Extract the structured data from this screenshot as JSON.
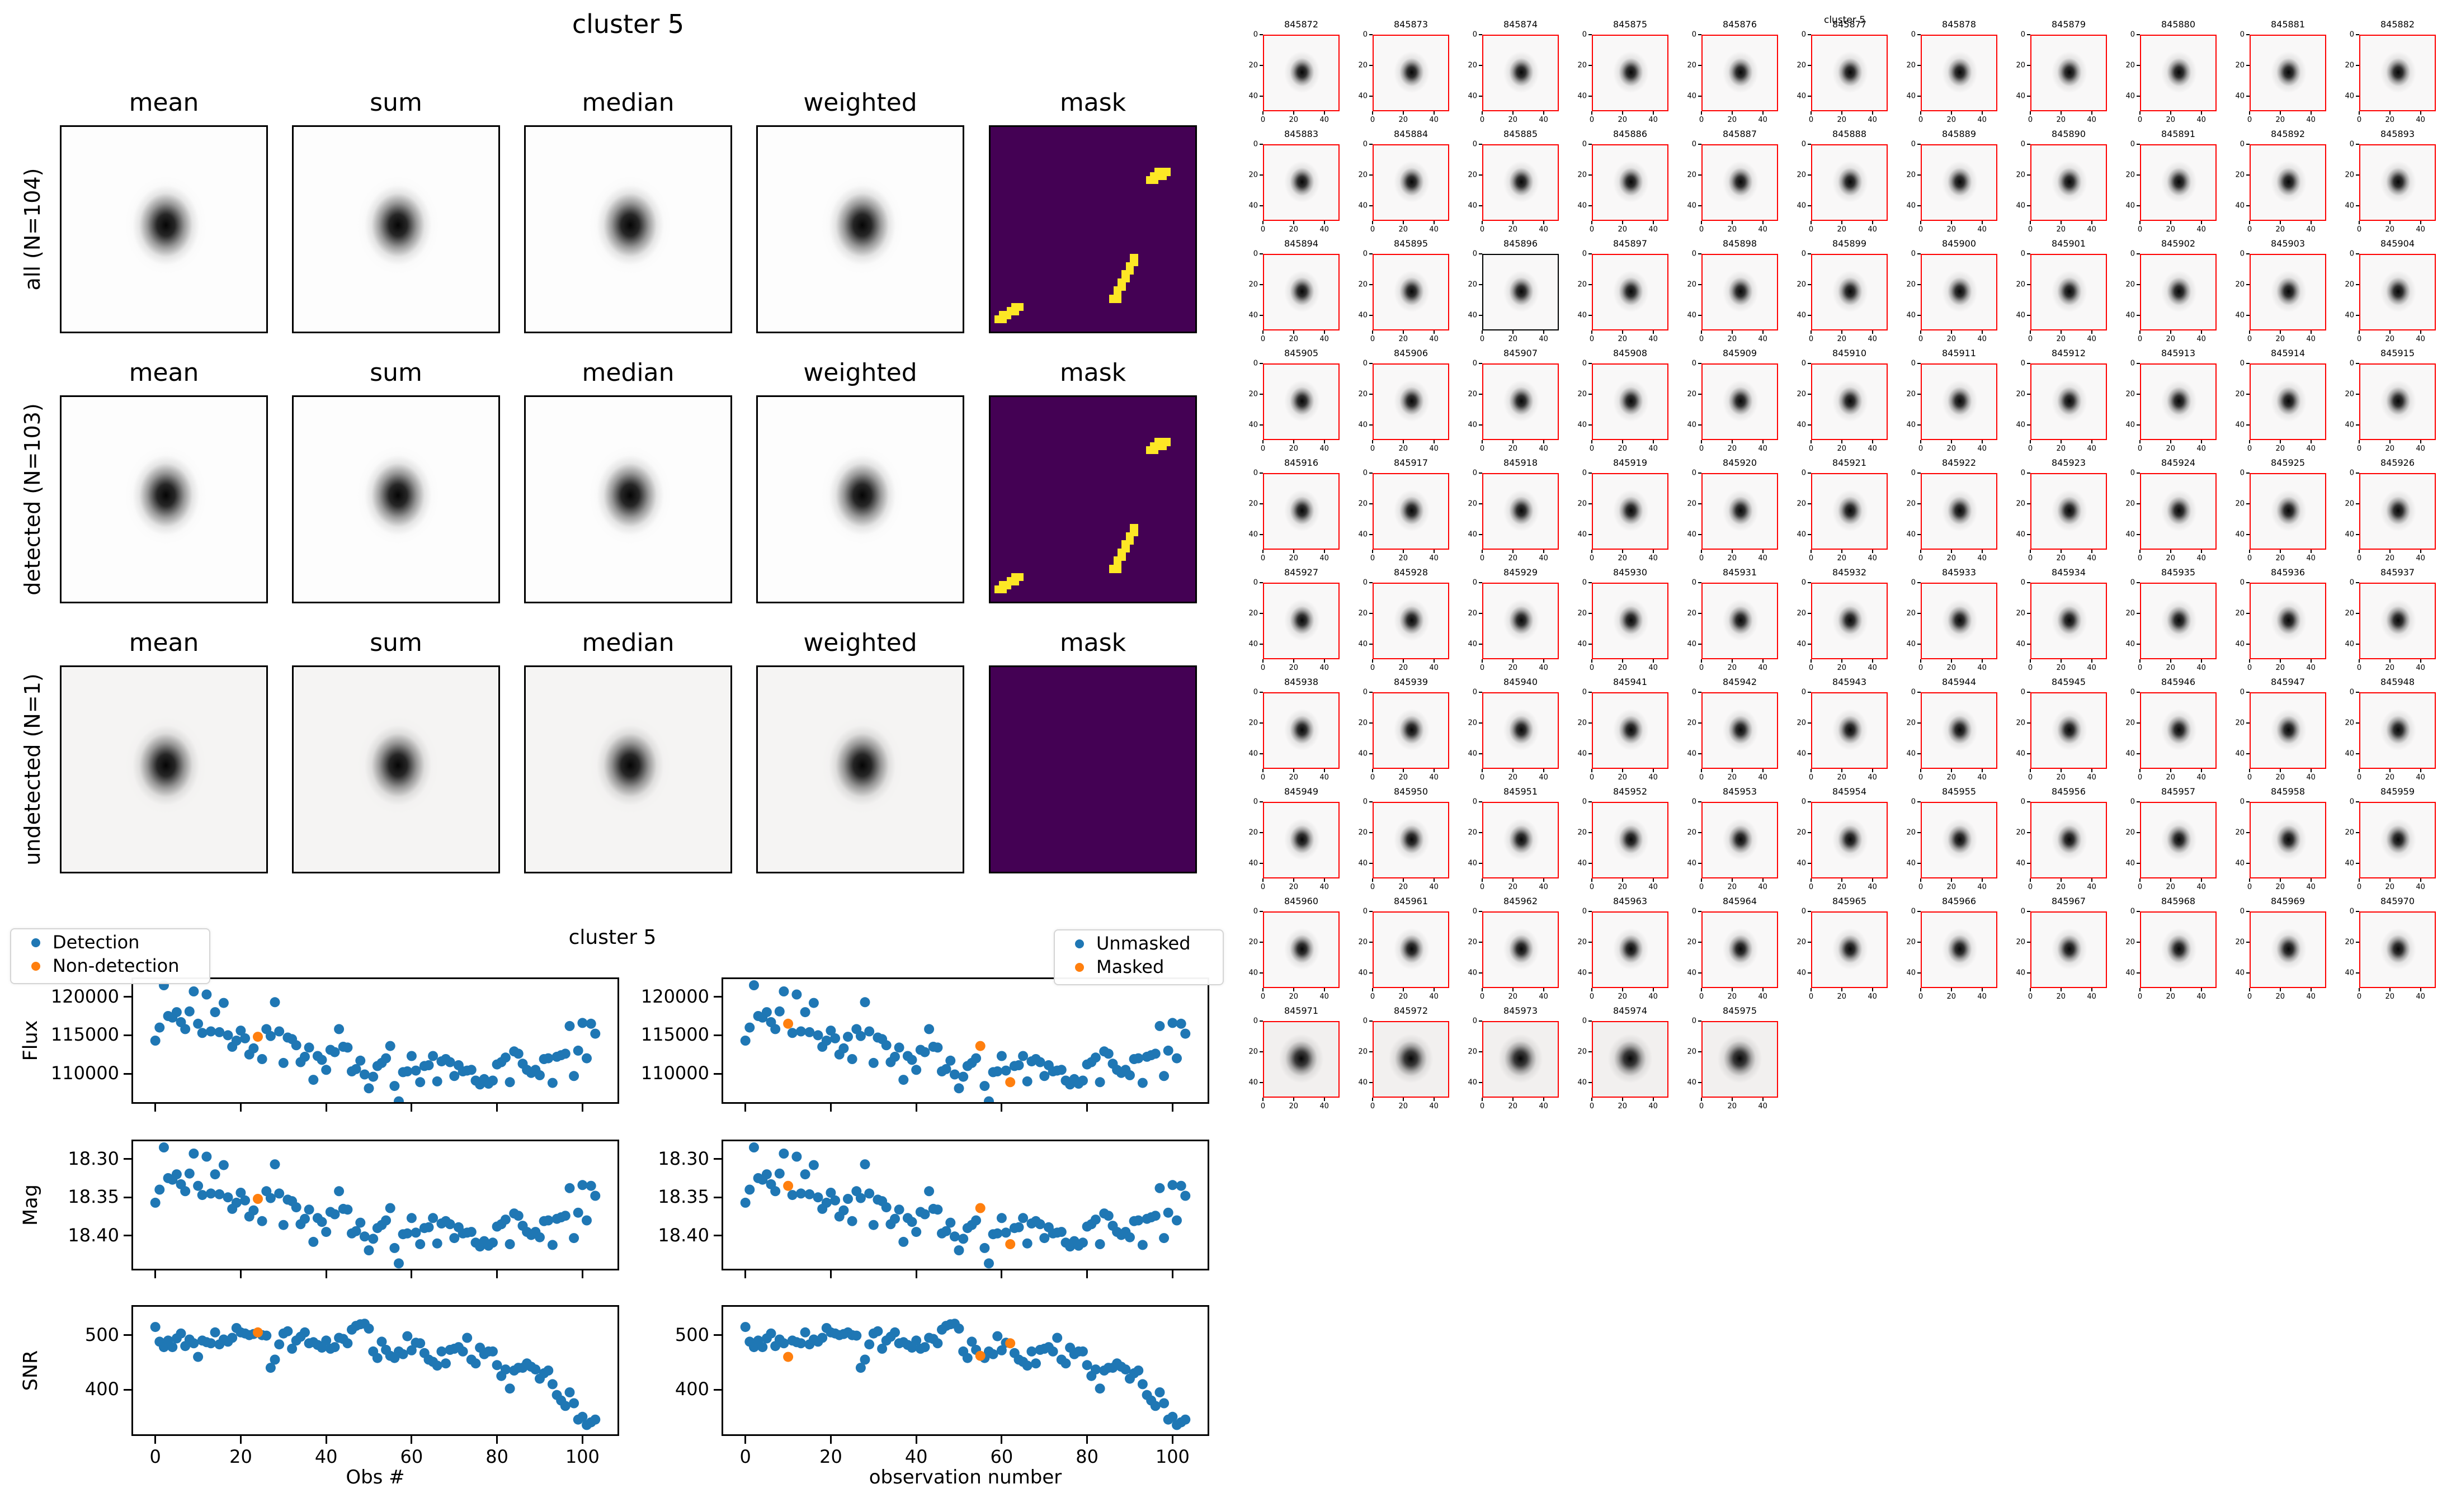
{
  "cutouts": {
    "title": "cluster 5",
    "column_headers": [
      "mean",
      "sum",
      "median",
      "weighted",
      "mask"
    ],
    "rows": [
      {
        "label": "all (N=104)",
        "mask": "full",
        "noisy": false
      },
      {
        "label": "detected (N=103)",
        "mask": "full",
        "noisy": false
      },
      {
        "label": "undetected (N=1)",
        "mask": "empty",
        "noisy": true
      }
    ],
    "mask_bg": "#440154",
    "mask_fg": "#fde725",
    "mask_grid_size": 50,
    "mask_cells": [
      [
        40,
        10
      ],
      [
        41,
        10
      ],
      [
        42,
        10
      ],
      [
        39,
        11
      ],
      [
        40,
        11
      ],
      [
        41,
        11
      ],
      [
        38,
        12
      ],
      [
        39,
        12
      ],
      [
        34,
        31
      ],
      [
        34,
        32
      ],
      [
        33,
        33
      ],
      [
        33,
        34
      ],
      [
        32,
        35
      ],
      [
        32,
        36
      ],
      [
        31,
        37
      ],
      [
        31,
        38
      ],
      [
        30,
        39
      ],
      [
        30,
        40
      ],
      [
        29,
        41
      ],
      [
        30,
        41
      ],
      [
        5,
        43
      ],
      [
        6,
        43
      ],
      [
        4,
        44
      ],
      [
        5,
        44
      ],
      [
        2,
        45
      ],
      [
        3,
        45
      ],
      [
        1,
        46
      ],
      [
        2,
        46
      ]
    ]
  },
  "lightcurves": {
    "title": "cluster 5",
    "columns": [
      {
        "xlabel": "Obs #",
        "legend": [
          "Detection",
          "Non-detection"
        ],
        "accent_indices": [
          24
        ]
      },
      {
        "xlabel": "observation number",
        "legend": [
          "Unmasked",
          "Masked"
        ],
        "accent_indices": [
          10,
          55,
          62
        ]
      }
    ],
    "plots": [
      {
        "ylabel": "Flux",
        "series": "Flux",
        "ylim_bottom": 106300,
        "ylim_top": 122300,
        "yticks": [
          {
            "label": "120000",
            "value": 120000
          },
          {
            "label": "115000",
            "value": 115000
          },
          {
            "label": "110000",
            "value": 110000
          }
        ]
      },
      {
        "ylabel": "Mag",
        "series": "Mag",
        "ylim_bottom": 18.443,
        "ylim_top": 18.277,
        "yticks": [
          {
            "label": "18.30",
            "value": 18.3
          },
          {
            "label": "18.35",
            "value": 18.35
          },
          {
            "label": "18.40",
            "value": 18.4
          }
        ]
      },
      {
        "ylabel": "SNR",
        "series": "SNR",
        "ylim_bottom": 318,
        "ylim_top": 552,
        "yticks": [
          {
            "label": "500",
            "value": 500
          },
          {
            "label": "400",
            "value": 400
          }
        ]
      }
    ],
    "xticks": [
      {
        "label": "0",
        "value": 0
      },
      {
        "label": "20",
        "value": 20
      },
      {
        "label": "40",
        "value": 40
      },
      {
        "label": "60",
        "value": 60
      },
      {
        "label": "80",
        "value": 80
      },
      {
        "label": "100",
        "value": 100
      }
    ],
    "xlim": [
      -5.2,
      108.2
    ]
  },
  "colors": {
    "base_point": "#1f77b4",
    "accent_point": "#ff7f0e"
  },
  "chart_data": {
    "type": "scatter",
    "title": "cluster 5",
    "xlabel_left": "Obs #",
    "xlabel_right": "observation number",
    "legend_left": [
      "Detection",
      "Non-detection"
    ],
    "legend_right": [
      "Unmasked",
      "Masked"
    ],
    "non_detection_indices": [
      24
    ],
    "masked_indices": [
      10,
      55,
      62
    ],
    "xlim": [
      -5.2,
      108.2
    ],
    "x": [
      0,
      1,
      2,
      3,
      4,
      5,
      6,
      7,
      8,
      9,
      10,
      11,
      12,
      13,
      14,
      15,
      16,
      17,
      18,
      19,
      20,
      21,
      22,
      23,
      24,
      25,
      26,
      27,
      28,
      29,
      30,
      31,
      32,
      33,
      34,
      35,
      36,
      37,
      38,
      39,
      40,
      41,
      42,
      43,
      44,
      45,
      46,
      47,
      48,
      49,
      50,
      51,
      52,
      53,
      54,
      55,
      56,
      57,
      58,
      59,
      60,
      61,
      62,
      63,
      64,
      65,
      66,
      67,
      68,
      69,
      70,
      71,
      72,
      73,
      74,
      75,
      76,
      77,
      78,
      79,
      80,
      81,
      82,
      83,
      84,
      85,
      86,
      87,
      88,
      89,
      90,
      91,
      92,
      93,
      94,
      95,
      96,
      97,
      98,
      99,
      100,
      101,
      102,
      103
    ],
    "series": [
      {
        "name": "Flux",
        "ylim": [
          106300,
          122300
        ],
        "values": [
          114300,
          116000,
          121500,
          117500,
          117300,
          118000,
          116700,
          115800,
          118100,
          120700,
          116500,
          115300,
          120300,
          115500,
          118000,
          115400,
          119200,
          115000,
          113500,
          114300,
          115600,
          114600,
          112500,
          113300,
          114800,
          111900,
          115800,
          114900,
          119300,
          115500,
          111400,
          114700,
          114500,
          113700,
          111500,
          112200,
          113400,
          109200,
          112300,
          111800,
          110500,
          113100,
          112800,
          115800,
          113500,
          113400,
          110300,
          110600,
          111700,
          109900,
          108100,
          109600,
          111000,
          111400,
          112000,
          113600,
          108400,
          106400,
          110200,
          110300,
          112300,
          110400,
          108900,
          111000,
          111100,
          112300,
          109000,
          111600,
          111900,
          111500,
          109700,
          111100,
          110300,
          110400,
          110500,
          109100,
          108600,
          109300,
          108700,
          109100,
          111200,
          111500,
          112100,
          108900,
          112900,
          112600,
          111300,
          110500,
          110100,
          110500,
          109800,
          111900,
          112000,
          108800,
          112200,
          112400,
          112600,
          116200,
          109700,
          113000,
          116600,
          112000,
          116500,
          115200
        ]
      },
      {
        "name": "Mag",
        "ylim": [
          18.443,
          18.277
        ],
        "values": [
          18.357,
          18.34,
          18.285,
          18.325,
          18.327,
          18.32,
          18.333,
          18.342,
          18.319,
          18.293,
          18.335,
          18.347,
          18.297,
          18.345,
          18.32,
          18.346,
          18.308,
          18.35,
          18.365,
          18.357,
          18.344,
          18.354,
          18.375,
          18.367,
          18.352,
          18.381,
          18.342,
          18.351,
          18.307,
          18.345,
          18.386,
          18.353,
          18.355,
          18.363,
          18.385,
          18.378,
          18.366,
          18.408,
          18.377,
          18.382,
          18.395,
          18.369,
          18.372,
          18.342,
          18.365,
          18.366,
          18.397,
          18.394,
          18.383,
          18.401,
          18.419,
          18.404,
          18.39,
          18.386,
          18.38,
          18.364,
          18.416,
          18.436,
          18.398,
          18.397,
          18.377,
          18.396,
          18.411,
          18.39,
          18.389,
          18.377,
          18.41,
          18.384,
          18.381,
          18.385,
          18.403,
          18.389,
          18.397,
          18.396,
          18.395,
          18.409,
          18.414,
          18.407,
          18.413,
          18.409,
          18.388,
          18.385,
          18.379,
          18.411,
          18.371,
          18.374,
          18.387,
          18.395,
          18.399,
          18.395,
          18.402,
          18.381,
          18.38,
          18.412,
          18.378,
          18.376,
          18.374,
          18.338,
          18.403,
          18.37,
          18.334,
          18.38,
          18.335,
          18.348
        ]
      },
      {
        "name": "SNR",
        "ylim": [
          318,
          552
        ],
        "values": [
          515,
          488,
          478,
          490,
          478,
          494,
          503,
          480,
          492,
          485,
          460,
          490,
          487,
          485,
          505,
          483,
          492,
          488,
          495,
          513,
          505,
          503,
          500,
          502,
          505,
          500,
          499,
          440,
          455,
          483,
          503,
          507,
          475,
          490,
          497,
          505,
          485,
          487,
          482,
          477,
          490,
          475,
          478,
          495,
          493,
          485,
          510,
          517,
          520,
          521,
          512,
          470,
          458,
          488,
          473,
          462,
          458,
          470,
          465,
          498,
          472,
          486,
          485,
          467,
          455,
          451,
          444,
          470,
          448,
          473,
          475,
          478,
          470,
          495,
          455,
          448,
          477,
          465,
          470,
          470,
          445,
          425,
          437,
          402,
          435,
          440,
          440,
          448,
          442,
          437,
          420,
          430,
          435,
          410,
          390,
          380,
          370,
          395,
          375,
          345,
          350,
          335,
          340,
          345
        ]
      }
    ]
  },
  "stamp_grid": {
    "title": "cluster 5",
    "columns": 11,
    "axis_max": 50,
    "tick_values": [
      0,
      20,
      40
    ],
    "xtick_labels": [
      "0",
      "20",
      "40"
    ],
    "ytick_labels": [
      "0",
      "20",
      "40"
    ],
    "border_color": "#ff0000",
    "undetected_border_color": "#000000",
    "undetected_id": 845896,
    "noisy_from_index": 99,
    "ids": [
      845872,
      845873,
      845874,
      845875,
      845876,
      845877,
      845878,
      845879,
      845880,
      845881,
      845882,
      845883,
      845884,
      845885,
      845886,
      845887,
      845888,
      845889,
      845890,
      845891,
      845892,
      845893,
      845894,
      845895,
      845896,
      845897,
      845898,
      845899,
      845900,
      845901,
      845902,
      845903,
      845904,
      845905,
      845906,
      845907,
      845908,
      845909,
      845910,
      845911,
      845912,
      845913,
      845914,
      845915,
      845916,
      845917,
      845918,
      845919,
      845920,
      845921,
      845922,
      845923,
      845924,
      845925,
      845926,
      845927,
      845928,
      845929,
      845930,
      845931,
      845932,
      845933,
      845934,
      845935,
      845936,
      845937,
      845938,
      845939,
      845940,
      845941,
      845942,
      845943,
      845944,
      845945,
      845946,
      845947,
      845948,
      845949,
      845950,
      845951,
      845952,
      845953,
      845954,
      845955,
      845956,
      845957,
      845958,
      845959,
      845960,
      845961,
      845962,
      845963,
      845964,
      845965,
      845966,
      845967,
      845968,
      845969,
      845970,
      845971,
      845972,
      845973,
      845974,
      845975
    ]
  }
}
